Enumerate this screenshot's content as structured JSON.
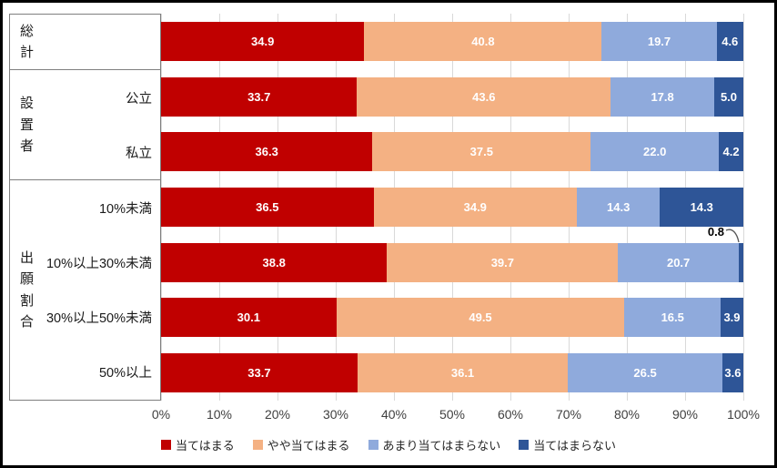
{
  "chart_data": {
    "type": "bar",
    "orientation": "horizontal-stacked",
    "title": "",
    "xlim": [
      0,
      100
    ],
    "grid": true,
    "legend_position": "bottom",
    "x_ticks": [
      "0%",
      "10%",
      "20%",
      "30%",
      "40%",
      "50%",
      "60%",
      "70%",
      "80%",
      "90%",
      "100%"
    ],
    "series": [
      {
        "name": "当てはまる",
        "color": "#c00000"
      },
      {
        "name": "やや当てはまる",
        "color": "#f4b183"
      },
      {
        "name": "あまり当てはまらない",
        "color": "#8faadc"
      },
      {
        "name": "当てはまらない",
        "color": "#2e5597"
      }
    ],
    "value_label_color": "#ffffff",
    "groups": [
      {
        "label": "総計",
        "rows": [
          {
            "label": "",
            "values": [
              34.9,
              40.8,
              19.7,
              4.6
            ]
          }
        ]
      },
      {
        "label": "設置者",
        "rows": [
          {
            "label": "公立",
            "values": [
              33.7,
              43.6,
              17.8,
              5.0
            ]
          },
          {
            "label": "私立",
            "values": [
              36.3,
              37.5,
              22.0,
              4.2
            ]
          }
        ]
      },
      {
        "label": "出願割合",
        "rows": [
          {
            "label": "10%未満",
            "values": [
              36.5,
              34.9,
              14.3,
              14.3
            ]
          },
          {
            "label": "10%以上30%未満",
            "values": [
              38.8,
              39.7,
              20.7,
              0.8
            ],
            "callout_segment": 3
          },
          {
            "label": "30%以上50%未満",
            "values": [
              30.1,
              49.5,
              16.5,
              3.9
            ]
          },
          {
            "label": "50%以上",
            "values": [
              33.7,
              36.1,
              26.5,
              3.6
            ]
          }
        ]
      }
    ],
    "callout": {
      "text": "0.8"
    }
  }
}
